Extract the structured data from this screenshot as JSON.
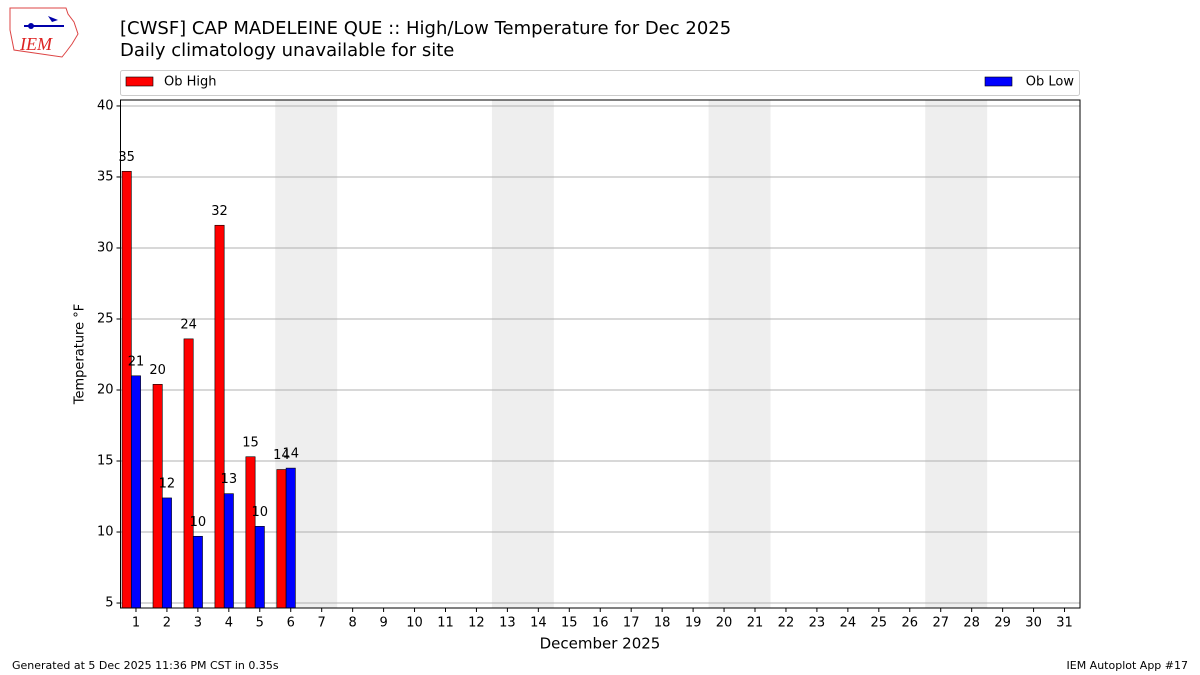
{
  "chart_data": {
    "type": "bar",
    "title": "[CWSF] CAP MADELEINE  QUE :: High/Low Temperature for Dec 2025",
    "subtitle": "Daily climatology unavailable for site",
    "xlabel": "December 2025",
    "ylabel": "Temperature °F",
    "logo_text": "IEM",
    "footer_left": "Generated at 5 Dec 2025 11:36 PM CST in 0.35s",
    "footer_right": "IEM Autoplot App #17",
    "categories": [
      "1",
      "2",
      "3",
      "4",
      "5",
      "6",
      "7",
      "8",
      "9",
      "10",
      "11",
      "12",
      "13",
      "14",
      "15",
      "16",
      "17",
      "18",
      "19",
      "20",
      "21",
      "22",
      "23",
      "24",
      "25",
      "26",
      "27",
      "28",
      "29",
      "30",
      "31"
    ],
    "series": [
      {
        "name": "Ob High",
        "color": "#ff0000",
        "values": [
          35.4,
          20.4,
          23.6,
          31.6,
          15.3,
          14.4,
          null,
          null,
          null,
          null,
          null,
          null,
          null,
          null,
          null,
          null,
          null,
          null,
          null,
          null,
          null,
          null,
          null,
          null,
          null,
          null,
          null,
          null,
          null,
          null,
          null
        ],
        "value_labels": [
          "35",
          "20",
          "24",
          "32",
          "15",
          "14"
        ]
      },
      {
        "name": "Ob Low",
        "color": "#0000ff",
        "values": [
          21,
          12.4,
          9.7,
          12.7,
          10.4,
          14.5,
          null,
          null,
          null,
          null,
          null,
          null,
          null,
          null,
          null,
          null,
          null,
          null,
          null,
          null,
          null,
          null,
          null,
          null,
          null,
          null,
          null,
          null,
          null,
          null,
          null
        ],
        "value_labels": [
          "21",
          "12",
          "10",
          "13",
          "10",
          "14"
        ]
      }
    ],
    "shaded_days": [
      [
        "6",
        "7"
      ],
      [
        "13",
        "14"
      ],
      [
        "20",
        "21"
      ],
      [
        "27",
        "28"
      ]
    ],
    "ylim": [
      4.65,
      40.42
    ],
    "yticks": [
      5,
      10,
      15,
      20,
      25,
      30,
      35,
      40
    ],
    "grid": true
  }
}
